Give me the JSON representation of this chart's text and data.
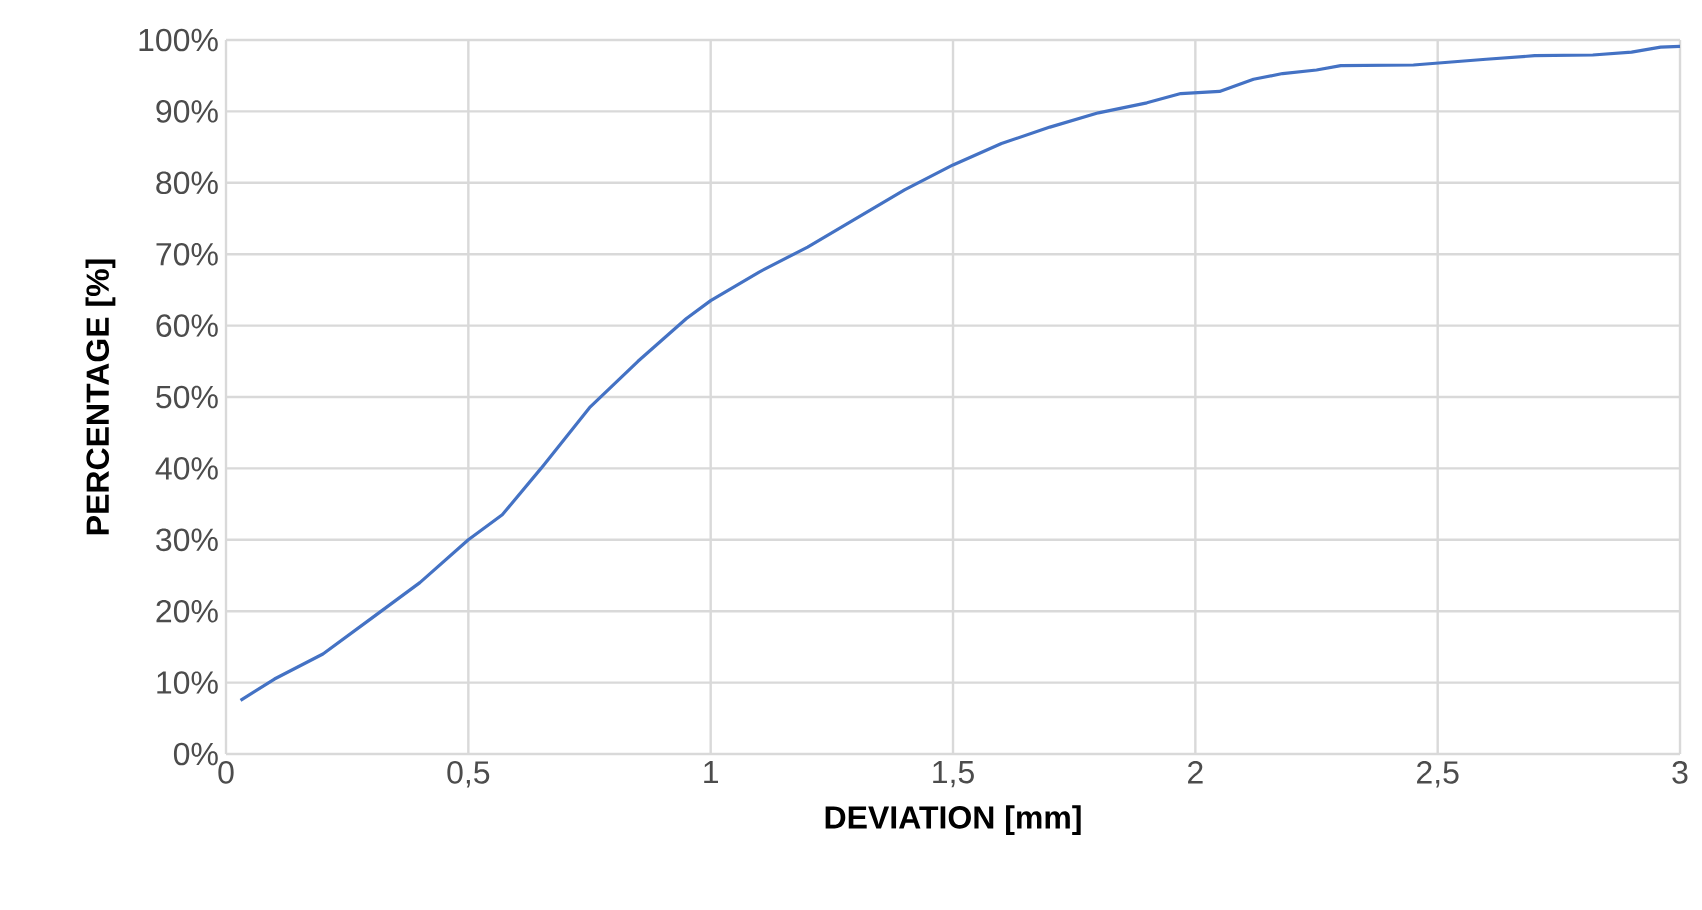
{
  "chart_data": {
    "type": "line",
    "xlabel": "DEVIATION [mm]",
    "ylabel": "PERCENTAGE [%]",
    "xlim": [
      0,
      3
    ],
    "ylim": [
      0,
      100
    ],
    "xticks": [
      0,
      {
        "value": 0.5,
        "label": "0,5"
      },
      1,
      {
        "value": 1.5,
        "label": "1,5"
      },
      2,
      {
        "value": 2.5,
        "label": "2,5"
      },
      3
    ],
    "yticks": [
      {
        "value": 0,
        "label": "0%"
      },
      {
        "value": 10,
        "label": "10%"
      },
      {
        "value": 20,
        "label": "20%"
      },
      {
        "value": 30,
        "label": "30%"
      },
      {
        "value": 40,
        "label": "40%"
      },
      {
        "value": 50,
        "label": "50%"
      },
      {
        "value": 60,
        "label": "60%"
      },
      {
        "value": 70,
        "label": "70%"
      },
      {
        "value": 80,
        "label": "80%"
      },
      {
        "value": 90,
        "label": "90%"
      },
      {
        "value": 100,
        "label": "100%"
      }
    ],
    "grid": true,
    "marker": "none",
    "line_style": "solid",
    "x": [
      0.03,
      0.1,
      0.2,
      0.3,
      0.4,
      0.5,
      0.57,
      0.65,
      0.75,
      0.85,
      0.95,
      1.0,
      1.1,
      1.2,
      1.3,
      1.4,
      1.5,
      1.6,
      1.7,
      1.8,
      1.9,
      1.97,
      2.05,
      2.12,
      2.18,
      2.25,
      2.3,
      2.45,
      2.6,
      2.7,
      2.82,
      2.9,
      2.96,
      3.0
    ],
    "series": [
      {
        "color": "#4472c4",
        "values": [
          7.5,
          10.5,
          14,
          19,
          24,
          30,
          33.5,
          40,
          48.5,
          55,
          61,
          63.5,
          67.5,
          71,
          75,
          79,
          82.5,
          85.5,
          87.8,
          89.8,
          91.2,
          92.5,
          92.8,
          94.5,
          95.3,
          95.8,
          96.4,
          96.5,
          97.3,
          97.8,
          97.9,
          98.3,
          99,
          99.1
        ]
      }
    ]
  }
}
